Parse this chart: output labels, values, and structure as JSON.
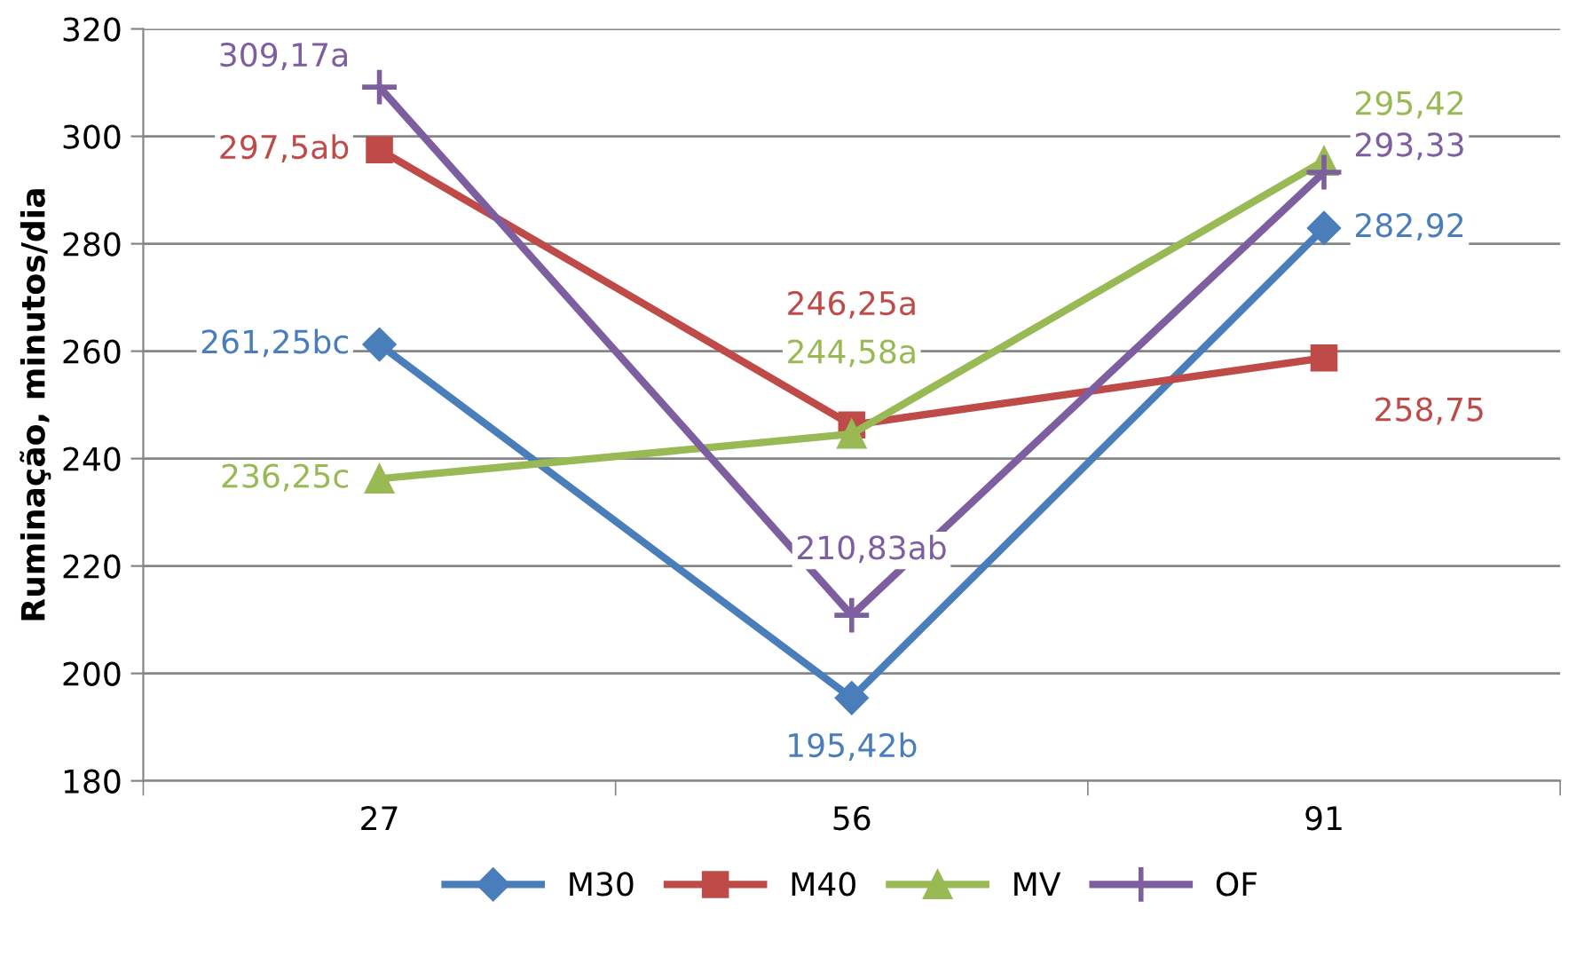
{
  "chart_data": {
    "type": "line",
    "ylabel": "Ruminação, minutos/dia",
    "categories": [
      "27",
      "56",
      "91"
    ],
    "ylim": [
      180,
      320
    ],
    "yticks": [
      180,
      200,
      220,
      240,
      260,
      280,
      300,
      320
    ],
    "grid": "y",
    "legend": "bottom",
    "series": [
      {
        "name": "M30",
        "color": "#4a7ebb",
        "marker": "diamond",
        "values": [
          261.25,
          195.42,
          282.92
        ],
        "value_labels": [
          "261,25bc",
          "195,42b",
          "282,92"
        ]
      },
      {
        "name": "M40",
        "color": "#be4b48",
        "marker": "square",
        "values": [
          297.5,
          246.25,
          258.75
        ],
        "value_labels": [
          "297,5ab",
          "246,25a",
          "258,75"
        ]
      },
      {
        "name": "MV",
        "color": "#98b954",
        "marker": "triangle",
        "values": [
          236.25,
          244.58,
          295.42
        ],
        "value_labels": [
          "236,25c",
          "244,58a",
          "295,42"
        ]
      },
      {
        "name": "OF",
        "color": "#7d5fa0",
        "marker": "cross",
        "values": [
          309.17,
          210.83,
          293.33
        ],
        "value_labels": [
          "309,17a",
          "210,83ab",
          "293,33"
        ]
      }
    ]
  }
}
